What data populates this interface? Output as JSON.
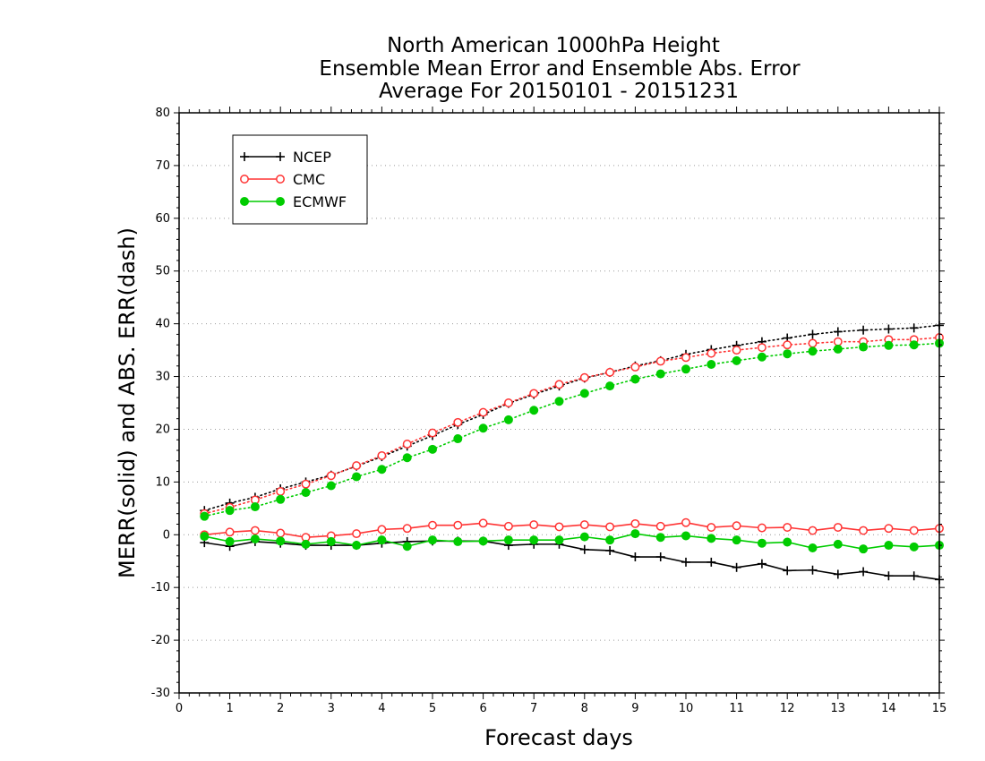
{
  "chart_data": {
    "type": "line",
    "title_lines": [
      "North American 1000hPa Height",
      "Ensemble Mean Error and Ensemble Abs. Error",
      "Average For 20150101 - 20151231"
    ],
    "xlabel": "Forecast days",
    "ylabel": "MERR(solid) and ABS. ERR(dash)",
    "xlim": [
      0,
      15
    ],
    "ylim": [
      -30,
      80
    ],
    "x_ticks": [
      "0",
      "1",
      "2",
      "3",
      "4",
      "5",
      "6",
      "7",
      "8",
      "9",
      "10",
      "11",
      "12",
      "13",
      "14",
      "15"
    ],
    "y_ticks": [
      "-30",
      "-20",
      "-10",
      "0",
      "10",
      "20",
      "30",
      "40",
      "50",
      "60",
      "70",
      "80"
    ],
    "grid": "horizontal dotted",
    "legend_position": "top-left",
    "x": [
      0.5,
      1,
      1.5,
      2,
      2.5,
      3,
      3.5,
      4,
      4.5,
      5,
      5.5,
      6,
      6.5,
      7,
      7.5,
      8,
      8.5,
      9,
      9.5,
      10,
      10.5,
      11,
      11.5,
      12,
      12.5,
      13,
      13.5,
      14,
      14.5,
      15
    ],
    "series": [
      {
        "name": "NCEP",
        "color": "#000000",
        "marker": "plus",
        "merr": [
          -1.5,
          -2.2,
          -1.3,
          -1.6,
          -2.0,
          -2.0,
          -2.0,
          -1.6,
          -1.3,
          -1.2,
          -1.2,
          -1.2,
          -2.0,
          -1.8,
          -1.8,
          -2.8,
          -3.0,
          -4.2,
          -4.2,
          -5.2,
          -5.2,
          -6.2,
          -5.5,
          -6.8,
          -6.7,
          -7.5,
          -7.0,
          -7.8,
          -7.8,
          -8.5
        ],
        "abs_err": [
          4.6,
          6.0,
          7.1,
          8.7,
          10.0,
          11.3,
          13.0,
          14.8,
          16.8,
          18.8,
          20.9,
          22.8,
          24.9,
          26.6,
          28.2,
          29.7,
          30.8,
          32.0,
          33.0,
          34.2,
          35.1,
          35.9,
          36.6,
          37.3,
          38.0,
          38.5,
          38.8,
          39.0,
          39.2,
          39.7
        ]
      },
      {
        "name": "CMC",
        "color": "#ff3333",
        "marker": "open-circle",
        "merr": [
          0.0,
          0.5,
          0.8,
          0.3,
          -0.5,
          -0.2,
          0.2,
          1.0,
          1.2,
          1.8,
          1.8,
          2.2,
          1.6,
          1.9,
          1.5,
          1.9,
          1.5,
          2.1,
          1.6,
          2.3,
          1.4,
          1.7,
          1.3,
          1.4,
          0.8,
          1.4,
          0.8,
          1.2,
          0.8,
          1.2
        ],
        "abs_err": [
          4.0,
          5.2,
          6.6,
          8.2,
          9.6,
          11.2,
          13.1,
          15.0,
          17.2,
          19.3,
          21.3,
          23.2,
          25.0,
          26.8,
          28.5,
          29.8,
          30.8,
          31.8,
          32.9,
          33.6,
          34.4,
          35.0,
          35.5,
          36.0,
          36.3,
          36.6,
          36.6,
          37.0,
          37.0,
          37.4
        ]
      },
      {
        "name": "ECMWF",
        "color": "#00cc00",
        "marker": "filled-circle",
        "merr": [
          -0.3,
          -1.3,
          -0.8,
          -1.2,
          -1.8,
          -1.3,
          -2.0,
          -1.0,
          -2.2,
          -1.0,
          -1.3,
          -1.2,
          -1.0,
          -1.0,
          -1.0,
          -0.4,
          -1.0,
          0.2,
          -0.5,
          -0.2,
          -0.7,
          -1.0,
          -1.6,
          -1.4,
          -2.5,
          -1.8,
          -2.7,
          -2.0,
          -2.3,
          -2.0
        ],
        "abs_err": [
          3.5,
          4.6,
          5.3,
          6.7,
          8.0,
          9.3,
          11.0,
          12.4,
          14.6,
          16.2,
          18.2,
          20.2,
          21.8,
          23.6,
          25.3,
          26.8,
          28.2,
          29.5,
          30.5,
          31.4,
          32.3,
          33.0,
          33.7,
          34.3,
          34.8,
          35.2,
          35.6,
          35.9,
          36.0,
          36.3
        ]
      }
    ]
  }
}
